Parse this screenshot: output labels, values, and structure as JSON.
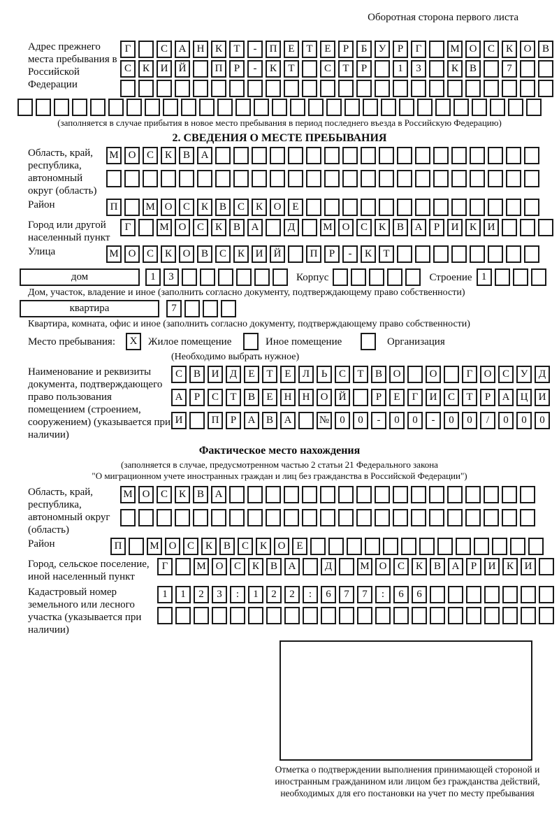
{
  "header": {
    "note": "Оборотная сторона первого листа"
  },
  "prev_address": {
    "label": "Адрес прежнего места пребывания в Российской Федерации",
    "rows": [
      {
        "cells": "Г САНКТ-ПЕТЕРБУРГ МОСКОВ",
        "count": 24
      },
      {
        "cells": "СКИЙ ПР-КТ СТР 13 КВ 7",
        "count": 24
      },
      {
        "cells": "",
        "count": 24
      },
      {
        "cells": "",
        "count": 29
      }
    ],
    "note": "(заполняется в случае прибытия в новое место пребывания в период последнего въезда в Российскую Федерацию)"
  },
  "section2": {
    "title": "2. СВЕДЕНИЯ О МЕСТЕ ПРЕБЫВАНИЯ",
    "region": {
      "label": "Область, край, республика, автономный округ (область)",
      "rows": [
        {
          "cells": "МОСКВА",
          "count": 24
        },
        {
          "cells": "",
          "count": 24
        }
      ]
    },
    "district": {
      "label": "Район",
      "row": {
        "cells": "П МОСКВСКОЕ",
        "count": 24
      }
    },
    "city": {
      "label": "Город или другой населенный пункт",
      "row": {
        "cells": "Г МОСКВА Д МОСКВАРИКИ",
        "count": 24
      }
    },
    "street": {
      "label": "Улица",
      "row": {
        "cells": "МОСКОВСКИЙ ПР-КТ",
        "count": 24
      }
    },
    "house": {
      "box_label": "дом",
      "row": {
        "cells": "13",
        "count": 8
      },
      "korpus_label": "Корпус",
      "korpus_row": {
        "cells": "",
        "count": 5
      },
      "stroenie_label": "Строение",
      "stroenie_row": {
        "cells": "1",
        "count": 4
      },
      "note": "Дом, участок, владение и иное (заполнить согласно документу, подтверждающему право собственности)"
    },
    "apartment": {
      "box_label": "квартира",
      "row": {
        "cells": "7",
        "count": 4
      },
      "note": "Квартира, комната, офис и иное (заполнить согласно документу, подтверждающему право собственности)"
    },
    "stay_type": {
      "label": "Место пребывания:",
      "options": [
        {
          "label": "Жилое помещение",
          "mark": "X"
        },
        {
          "label": "Иное помещение",
          "mark": ""
        },
        {
          "label": "Организация",
          "mark": ""
        }
      ],
      "note": "(Необходимо выбрать нужное)"
    },
    "document": {
      "label": "Наименование и реквизиты документа, подтверждающего право пользования помещением (строением, сооружением) (указывается при наличии)",
      "rows": [
        {
          "cells": "СВИДЕТЕЛЬСТВО О ГОСУД",
          "count": 21
        },
        {
          "cells": "АРСТВЕННОЙ РЕГИСТРАЦИ",
          "count": 21
        },
        {
          "cells": "И ПРАВА №00-00-00/000",
          "count": 21
        }
      ]
    }
  },
  "section3": {
    "title": "Фактическое место нахождения",
    "note_line1": "(заполняется в случае, предусмотренном частью 2 статьи 21 Федерального закона",
    "note_line2": "\"О миграционном учете иностранных граждан и лиц без гражданства в Российской Федерации\")",
    "region": {
      "label": "Область, край, республика, автономный округ (область)",
      "rows": [
        {
          "cells": "МОСКВА",
          "count": 23
        },
        {
          "cells": "",
          "count": 23
        }
      ]
    },
    "district": {
      "label": "Район",
      "row": {
        "cells": "П МОСКВСКОЕ",
        "count": 24
      }
    },
    "city": {
      "label": "Город, сельское поселение, иной населенный пункт",
      "row": {
        "cells": "Г МОСКВА Д МОСКВАРИКИ",
        "count": 22
      }
    },
    "cadastre": {
      "label": "Кадастровый номер земельного или лесного участка (указывается при наличии)",
      "rows": [
        {
          "cells": "1123:122:677:66",
          "count": 22
        },
        {
          "cells": "",
          "count": 22
        }
      ]
    }
  },
  "stamp": {
    "caption": "Отметка о подтверждении выполнения принимающей стороной и иностранным гражданином или лицом без гражданства действий, необходимых для его постановки на учет по месту пребывания"
  }
}
